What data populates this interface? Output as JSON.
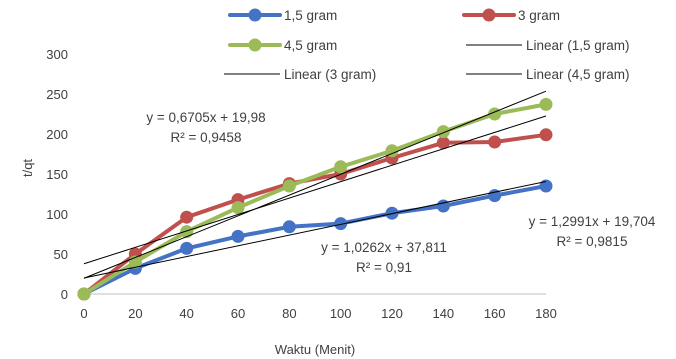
{
  "chart_data": {
    "type": "line",
    "xlabel": "Waktu (Menit)",
    "ylabel": "t/qt",
    "xlim": [
      0,
      180
    ],
    "ylim": [
      0,
      300
    ],
    "x_ticks": [
      0,
      20,
      40,
      60,
      80,
      100,
      120,
      140,
      160,
      180
    ],
    "y_ticks": [
      0,
      50,
      100,
      150,
      200,
      250,
      300
    ],
    "grid": false,
    "legend_position": "top",
    "x": [
      0,
      20,
      40,
      60,
      80,
      100,
      120,
      140,
      160,
      180
    ],
    "series": [
      {
        "name": "1,5 gram",
        "color": "#4472C4",
        "values": [
          0,
          32,
          57,
          72,
          84,
          88,
          101,
          110,
          123,
          135
        ]
      },
      {
        "name": "3 gram",
        "color": "#C0504D",
        "values": [
          0,
          50,
          96,
          118,
          138,
          150,
          170,
          189,
          190,
          199
        ]
      },
      {
        "name": "4,5 gram",
        "color": "#9BBB59",
        "values": [
          0,
          40,
          78,
          108,
          135,
          159,
          179,
          203,
          225,
          237
        ]
      }
    ],
    "trendlines": [
      {
        "name": "Linear (1,5 gram)",
        "slope": 0.6705,
        "intercept": 19.98,
        "equation": "y = 0,6705x + 19,98",
        "r2": "R² = 0,9458"
      },
      {
        "name": "Linear (3 gram)",
        "slope": 1.0262,
        "intercept": 37.811,
        "equation": "y = 1,0262x + 37,811",
        "r2": "R² = 0,91"
      },
      {
        "name": "Linear (4,5 gram)",
        "slope": 1.2991,
        "intercept": 19.704,
        "equation": "y = 1,2991x + 19,704",
        "r2": "R² = 0,9815"
      }
    ]
  }
}
